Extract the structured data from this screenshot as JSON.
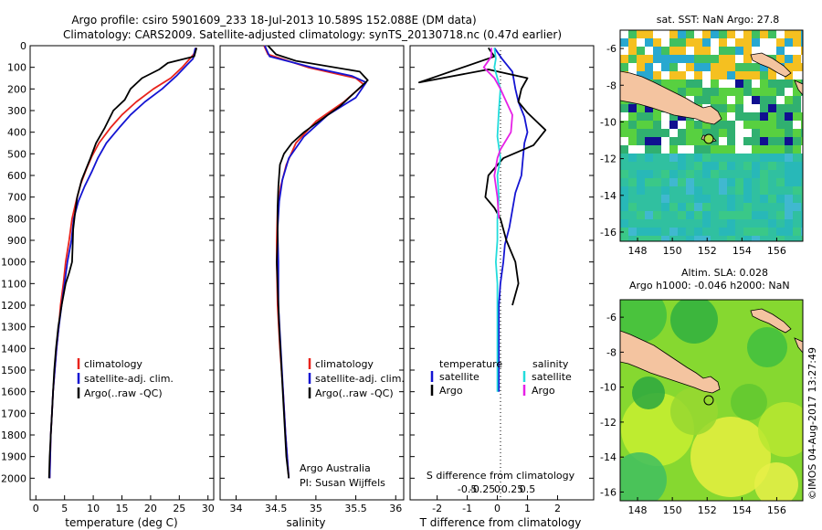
{
  "figure": {
    "title_line1": "Argo profile: csiro 5901609_233 18-Jul-2013 10.589S 152.088E (DM data)",
    "title_line2": "Climatology: CARS2009. Satellite-adjusted climatology: synTS_20130718.nc (0.47d earlier)",
    "timestamp": "©IMOS 04-Aug-2017 13:27:49",
    "credit_line1": "Argo Australia",
    "credit_line2": "PI: Susan Wijffels"
  },
  "colors": {
    "climatology": "#e8231c",
    "satellite": "#1414d2",
    "argo": "#000000",
    "salinity_satellite": "#22dcdc",
    "salinity_argo": "#e620e6",
    "land": "#f4c4a0"
  },
  "chart_data": [
    {
      "type": "line",
      "id": "temperature",
      "xlabel": "temperature (deg C)",
      "ylabel": "",
      "xlim": [
        -1,
        31
      ],
      "ylim": [
        2100,
        0
      ],
      "xticks": [
        0,
        5,
        10,
        15,
        20,
        25,
        30
      ],
      "yticks": [
        0,
        100,
        200,
        300,
        400,
        500,
        600,
        700,
        800,
        900,
        1000,
        1100,
        1200,
        1300,
        1400,
        1500,
        1600,
        1700,
        1800,
        1900,
        2000
      ],
      "legend": [
        "climatology",
        "satellite-adj. clim.",
        "Argo(..raw -QC)"
      ],
      "series": [
        {
          "name": "climatology",
          "color": "#e8231c",
          "points": [
            [
              28.0,
              10
            ],
            [
              27.5,
              40
            ],
            [
              25.5,
              100
            ],
            [
              23.5,
              150
            ],
            [
              20.5,
              200
            ],
            [
              17.5,
              260
            ],
            [
              15.0,
              320
            ],
            [
              13.0,
              380
            ],
            [
              11.0,
              450
            ],
            [
              9.8,
              510
            ],
            [
              8.8,
              570
            ],
            [
              7.8,
              640
            ],
            [
              7.0,
              720
            ],
            [
              6.3,
              800
            ],
            [
              5.8,
              900
            ],
            [
              5.2,
              1000
            ],
            [
              4.8,
              1100
            ],
            [
              4.3,
              1200
            ],
            [
              4.0,
              1300
            ],
            [
              3.6,
              1400
            ],
            [
              3.3,
              1500
            ],
            [
              3.0,
              1600
            ],
            [
              2.8,
              1700
            ],
            [
              2.6,
              1800
            ],
            [
              2.5,
              1900
            ],
            [
              2.4,
              2000
            ]
          ]
        },
        {
          "name": "satellite-adj. clim.",
          "color": "#1414d2",
          "points": [
            [
              27.8,
              10
            ],
            [
              27.4,
              60
            ],
            [
              26.3,
              90
            ],
            [
              24.5,
              140
            ],
            [
              22.0,
              200
            ],
            [
              19.0,
              260
            ],
            [
              16.5,
              320
            ],
            [
              14.5,
              380
            ],
            [
              12.3,
              450
            ],
            [
              10.8,
              520
            ],
            [
              9.8,
              580
            ],
            [
              8.5,
              650
            ],
            [
              7.4,
              720
            ],
            [
              6.6,
              800
            ],
            [
              6.2,
              900
            ],
            [
              5.5,
              1000
            ],
            [
              5.0,
              1100
            ],
            [
              4.5,
              1200
            ],
            [
              4.0,
              1300
            ],
            [
              3.6,
              1400
            ],
            [
              3.3,
              1500
            ],
            [
              3.0,
              1600
            ],
            [
              2.8,
              1700
            ],
            [
              2.6,
              1800
            ],
            [
              2.5,
              1900
            ],
            [
              2.4,
              2000
            ]
          ]
        },
        {
          "name": "Argo(..raw -QC)",
          "color": "#000000",
          "points": [
            [
              28.0,
              10
            ],
            [
              27.6,
              50
            ],
            [
              23.0,
              80
            ],
            [
              21.5,
              110
            ],
            [
              18.5,
              150
            ],
            [
              16.5,
              200
            ],
            [
              15.5,
              250
            ],
            [
              13.5,
              300
            ],
            [
              12.0,
              380
            ],
            [
              10.5,
              450
            ],
            [
              9.5,
              520
            ],
            [
              8.0,
              620
            ],
            [
              7.2,
              700
            ],
            [
              6.8,
              780
            ],
            [
              6.5,
              850
            ],
            [
              6.4,
              930
            ],
            [
              6.3,
              1000
            ],
            [
              5.8,
              1050
            ],
            [
              5.2,
              1100
            ],
            [
              4.5,
              1200
            ],
            [
              3.9,
              1300
            ],
            [
              3.5,
              1400
            ],
            [
              3.2,
              1500
            ],
            [
              3.0,
              1600
            ],
            [
              2.8,
              1700
            ],
            [
              2.6,
              1800
            ],
            [
              2.4,
              1900
            ],
            [
              2.3,
              2000
            ]
          ]
        }
      ]
    },
    {
      "type": "line",
      "id": "salinity",
      "xlabel": "salinity",
      "ylabel": "",
      "xlim": [
        33.8,
        36.1
      ],
      "ylim": [
        2100,
        0
      ],
      "xticks": [
        34,
        34.5,
        35,
        35.5,
        36
      ],
      "yticks": [],
      "legend": [
        "climatology",
        "satellite-adj. clim.",
        "Argo(..raw -QC)"
      ],
      "series": [
        {
          "name": "climatology",
          "color": "#e8231c",
          "points": [
            [
              34.35,
              0
            ],
            [
              34.4,
              40
            ],
            [
              34.9,
              100
            ],
            [
              35.5,
              150
            ],
            [
              35.6,
              180
            ],
            [
              35.35,
              260
            ],
            [
              35.0,
              350
            ],
            [
              34.75,
              450
            ],
            [
              34.63,
              550
            ],
            [
              34.56,
              650
            ],
            [
              34.52,
              750
            ],
            [
              34.51,
              900
            ],
            [
              34.51,
              1000
            ],
            [
              34.52,
              1200
            ],
            [
              34.55,
              1400
            ],
            [
              34.59,
              1600
            ],
            [
              34.62,
              1800
            ],
            [
              34.66,
              2000
            ]
          ]
        },
        {
          "name": "satellite-adj. clim.",
          "color": "#1414d2",
          "points": [
            [
              34.36,
              0
            ],
            [
              34.42,
              50
            ],
            [
              34.95,
              100
            ],
            [
              35.45,
              140
            ],
            [
              35.63,
              170
            ],
            [
              35.5,
              240
            ],
            [
              35.15,
              320
            ],
            [
              34.85,
              420
            ],
            [
              34.66,
              520
            ],
            [
              34.58,
              620
            ],
            [
              34.54,
              720
            ],
            [
              34.52,
              850
            ],
            [
              34.53,
              1000
            ],
            [
              34.53,
              1200
            ],
            [
              34.56,
              1400
            ],
            [
              34.59,
              1600
            ],
            [
              34.62,
              1800
            ],
            [
              34.66,
              2000
            ]
          ]
        },
        {
          "name": "Argo(..raw -QC)",
          "color": "#000000",
          "points": [
            [
              34.4,
              0
            ],
            [
              34.5,
              40
            ],
            [
              34.75,
              70
            ],
            [
              35.55,
              120
            ],
            [
              35.65,
              160
            ],
            [
              35.3,
              280
            ],
            [
              35.0,
              360
            ],
            [
              34.85,
              400
            ],
            [
              34.7,
              450
            ],
            [
              34.6,
              500
            ],
            [
              34.55,
              550
            ],
            [
              34.53,
              650
            ],
            [
              34.52,
              750
            ],
            [
              34.52,
              900
            ],
            [
              34.51,
              1000
            ],
            [
              34.52,
              1100
            ],
            [
              34.54,
              1300
            ],
            [
              34.57,
              1500
            ],
            [
              34.6,
              1700
            ],
            [
              34.63,
              1900
            ],
            [
              34.66,
              2000
            ]
          ]
        }
      ]
    },
    {
      "type": "line",
      "id": "differences",
      "xlabel": "T difference from climatology",
      "xlabel_top": "S difference from climatology",
      "ylabel": "",
      "xlim": [
        -2.9,
        3.2
      ],
      "ylim": [
        2100,
        0
      ],
      "xticks": [
        -2,
        -1,
        0,
        1,
        2
      ],
      "s_xticks": [
        -0.5,
        -0.25,
        0,
        0.25,
        0.5
      ],
      "yticks": [],
      "legend": {
        "temperature_header": "temperature",
        "salinity_header": "salinity",
        "temperature": [
          "satellite",
          "Argo"
        ],
        "salinity": [
          "satellite",
          "Argo"
        ]
      },
      "series": [
        {
          "name": "T satellite",
          "color": "#1414d2",
          "points": [
            [
              -0.1,
              10
            ],
            [
              0.15,
              60
            ],
            [
              0.5,
              120
            ],
            [
              0.6,
              200
            ],
            [
              0.7,
              260
            ],
            [
              0.9,
              330
            ],
            [
              1.0,
              400
            ],
            [
              0.9,
              450
            ],
            [
              0.85,
              520
            ],
            [
              0.8,
              600
            ],
            [
              0.6,
              680
            ],
            [
              0.5,
              760
            ],
            [
              0.4,
              840
            ],
            [
              0.25,
              920
            ],
            [
              0.2,
              1000
            ],
            [
              0.1,
              1100
            ],
            [
              0.05,
              1200
            ],
            [
              0.05,
              1400
            ],
            [
              0.05,
              1600
            ]
          ]
        },
        {
          "name": "T Argo",
          "color": "#000000",
          "points": [
            [
              -0.3,
              10
            ],
            [
              -0.1,
              50
            ],
            [
              -2.6,
              170
            ],
            [
              -0.3,
              110
            ],
            [
              1.0,
              150
            ],
            [
              0.8,
              200
            ],
            [
              0.7,
              260
            ],
            [
              1.0,
              310
            ],
            [
              1.6,
              390
            ],
            [
              1.2,
              460
            ],
            [
              0.2,
              520
            ],
            [
              -0.3,
              600
            ],
            [
              -0.4,
              700
            ],
            [
              -0.1,
              750
            ],
            [
              0.1,
              800
            ],
            [
              0.3,
              900
            ],
            [
              0.6,
              1000
            ],
            [
              0.7,
              1100
            ],
            [
              0.5,
              1200
            ]
          ]
        },
        {
          "name": "S satellite",
          "color": "#22dcdc",
          "points": [
            [
              -0.1,
              10
            ],
            [
              -0.05,
              60
            ],
            [
              -0.1,
              100
            ],
            [
              0.1,
              200
            ],
            [
              0.05,
              300
            ],
            [
              0.0,
              420
            ],
            [
              0.1,
              520
            ],
            [
              0.0,
              600
            ],
            [
              0.05,
              700
            ],
            [
              0.0,
              800
            ],
            [
              0.0,
              900
            ],
            [
              -0.05,
              1000
            ],
            [
              0.0,
              1100
            ],
            [
              0.0,
              1300
            ],
            [
              0.0,
              1600
            ]
          ]
        },
        {
          "name": "S Argo",
          "color": "#e620e6",
          "points": [
            [
              -0.2,
              10
            ],
            [
              -0.2,
              50
            ],
            [
              -0.45,
              100
            ],
            [
              -0.1,
              150
            ],
            [
              0.1,
              200
            ],
            [
              0.3,
              260
            ],
            [
              0.5,
              320
            ],
            [
              0.45,
              400
            ],
            [
              0.1,
              480
            ],
            [
              0.0,
              520
            ],
            [
              -0.1,
              600
            ],
            [
              0.0,
              700
            ],
            [
              0.05,
              800
            ]
          ]
        }
      ]
    },
    {
      "type": "heatmap",
      "id": "sst_map",
      "title": "sat. SST: NaN Argo: 27.8",
      "xticks": [
        148,
        150,
        152,
        154,
        156
      ],
      "yticks": [
        -6,
        -8,
        -10,
        -12,
        -14,
        -16
      ],
      "xlim": [
        147,
        157.5
      ],
      "ylim": [
        -16.5,
        -5
      ],
      "argo_location": [
        152.088,
        -10.589
      ]
    },
    {
      "type": "heatmap",
      "id": "sla_map",
      "title_line1": "Altim. SLA: 0.028",
      "title_line2": "Argo h1000: -0.046 h2000: NaN",
      "xticks": [
        148,
        150,
        152,
        154,
        156
      ],
      "yticks": [
        -6,
        -8,
        -10,
        -12,
        -14,
        -16
      ],
      "xlim": [
        147,
        157.5
      ],
      "ylim": [
        -16.5,
        -5
      ],
      "argo_location": [
        152.088,
        -10.589
      ]
    }
  ]
}
